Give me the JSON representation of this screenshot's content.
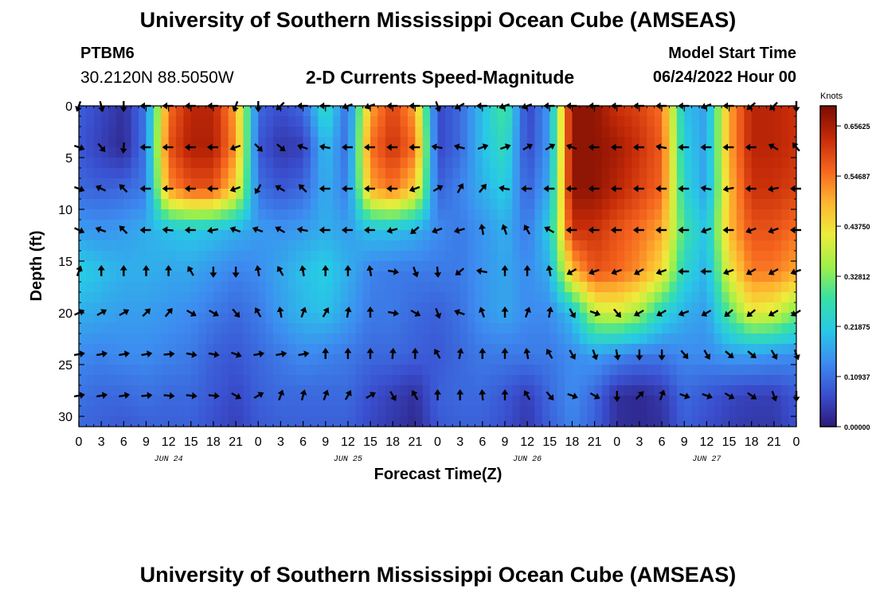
{
  "header": {
    "title": "University of Southern Mississippi Ocean Cube (AMSEAS)",
    "station_id": "PTBM6",
    "coordinates": "30.2120N  88.5050W",
    "subtitle": "2-D Currents Speed-Magnitude",
    "model_start_label": "Model Start Time",
    "model_start_value": "06/24/2022 Hour 00"
  },
  "footer": {
    "title": "University of Southern Mississippi Ocean Cube (AMSEAS)"
  },
  "colors": {
    "scale": [
      "#2b1a78",
      "#3a4fcf",
      "#3d8cf0",
      "#28c9e6",
      "#38e0a4",
      "#a0f048",
      "#ecec3c",
      "#ffb430",
      "#f5641e",
      "#c42a08",
      "#7a0c02"
    ]
  },
  "chart_data": {
    "type": "heatmap",
    "title": "2-D Currents Speed-Magnitude",
    "xlabel": "Forecast Time(Z)",
    "ylabel": "Depth (ft)",
    "x_ticks": [
      "0",
      "3",
      "6",
      "9",
      "12",
      "15",
      "18",
      "21",
      "0",
      "3",
      "6",
      "9",
      "12",
      "15",
      "18",
      "21",
      "0",
      "3",
      "6",
      "9",
      "12",
      "15",
      "18",
      "21",
      "0",
      "3",
      "6",
      "9",
      "12",
      "15",
      "18",
      "21",
      "0"
    ],
    "x_ticks_range_hours": [
      0,
      96
    ],
    "date_labels": [
      {
        "label": "JUN 24",
        "hour": 12
      },
      {
        "label": "JUN 25",
        "hour": 36
      },
      {
        "label": "JUN 26",
        "hour": 60
      },
      {
        "label": "JUN 27",
        "hour": 84
      }
    ],
    "y_ticks": [
      "0",
      "5",
      "10",
      "15",
      "20",
      "25",
      "30"
    ],
    "ylim": [
      0,
      31
    ],
    "colorbar": {
      "unit": "Knots",
      "min": 0,
      "max": 0.7,
      "tick_labels": [
        "0.00000",
        "0.10937",
        "0.21875",
        "0.32812",
        "0.43750",
        "0.54687",
        "0.65625"
      ]
    },
    "speed_field": {
      "units": "knots",
      "depths_ft": [
        0,
        4,
        8,
        12,
        16,
        20,
        24,
        28,
        31
      ],
      "hours": [
        0,
        3,
        6,
        9,
        12,
        15,
        18,
        21,
        24,
        27,
        30,
        33,
        36,
        39,
        42,
        45,
        48,
        51,
        54,
        57,
        60,
        63,
        66,
        69,
        72,
        75,
        78,
        81,
        84,
        87,
        90,
        93,
        96
      ],
      "rows": [
        [
          0.09,
          0.06,
          0.03,
          0.12,
          0.55,
          0.64,
          0.64,
          0.5,
          0.1,
          0.07,
          0.1,
          0.26,
          0.1,
          0.5,
          0.6,
          0.5,
          0.06,
          0.1,
          0.2,
          0.3,
          0.05,
          0.16,
          0.68,
          0.68,
          0.62,
          0.6,
          0.55,
          0.2,
          0.16,
          0.5,
          0.64,
          0.64,
          0.62
        ],
        [
          0.08,
          0.05,
          0.02,
          0.12,
          0.58,
          0.65,
          0.65,
          0.52,
          0.08,
          0.04,
          0.05,
          0.2,
          0.1,
          0.55,
          0.62,
          0.55,
          0.06,
          0.1,
          0.2,
          0.26,
          0.06,
          0.16,
          0.68,
          0.68,
          0.66,
          0.62,
          0.57,
          0.22,
          0.16,
          0.5,
          0.64,
          0.64,
          0.62
        ],
        [
          0.1,
          0.09,
          0.1,
          0.12,
          0.52,
          0.58,
          0.58,
          0.45,
          0.11,
          0.08,
          0.1,
          0.18,
          0.12,
          0.5,
          0.55,
          0.46,
          0.09,
          0.13,
          0.18,
          0.22,
          0.09,
          0.18,
          0.68,
          0.68,
          0.64,
          0.6,
          0.56,
          0.24,
          0.16,
          0.48,
          0.62,
          0.62,
          0.6
        ],
        [
          0.16,
          0.15,
          0.16,
          0.18,
          0.2,
          0.21,
          0.2,
          0.18,
          0.16,
          0.15,
          0.16,
          0.18,
          0.16,
          0.2,
          0.2,
          0.18,
          0.14,
          0.12,
          0.15,
          0.18,
          0.12,
          0.22,
          0.62,
          0.62,
          0.58,
          0.55,
          0.5,
          0.28,
          0.2,
          0.48,
          0.58,
          0.58,
          0.55
        ],
        [
          0.22,
          0.2,
          0.18,
          0.18,
          0.17,
          0.17,
          0.15,
          0.13,
          0.14,
          0.17,
          0.2,
          0.22,
          0.18,
          0.13,
          0.12,
          0.12,
          0.12,
          0.12,
          0.15,
          0.17,
          0.14,
          0.18,
          0.48,
          0.58,
          0.56,
          0.52,
          0.44,
          0.24,
          0.18,
          0.42,
          0.54,
          0.54,
          0.5
        ],
        [
          0.18,
          0.17,
          0.16,
          0.16,
          0.15,
          0.14,
          0.12,
          0.1,
          0.12,
          0.16,
          0.19,
          0.2,
          0.16,
          0.12,
          0.12,
          0.1,
          0.09,
          0.11,
          0.15,
          0.17,
          0.14,
          0.14,
          0.2,
          0.38,
          0.4,
          0.35,
          0.24,
          0.18,
          0.16,
          0.3,
          0.42,
          0.4,
          0.32
        ],
        [
          0.14,
          0.13,
          0.14,
          0.14,
          0.13,
          0.12,
          0.09,
          0.08,
          0.1,
          0.12,
          0.14,
          0.13,
          0.12,
          0.1,
          0.1,
          0.09,
          0.08,
          0.1,
          0.12,
          0.12,
          0.12,
          0.12,
          0.14,
          0.16,
          0.14,
          0.12,
          0.12,
          0.14,
          0.14,
          0.16,
          0.16,
          0.15,
          0.14
        ],
        [
          0.11,
          0.1,
          0.1,
          0.11,
          0.1,
          0.1,
          0.08,
          0.06,
          0.09,
          0.1,
          0.1,
          0.1,
          0.1,
          0.07,
          0.05,
          0.03,
          0.09,
          0.1,
          0.1,
          0.08,
          0.05,
          0.1,
          0.14,
          0.1,
          0.03,
          0.02,
          0.04,
          0.1,
          0.08,
          0.06,
          0.05,
          0.05,
          0.08
        ],
        [
          0.1,
          0.09,
          0.08,
          0.09,
          0.09,
          0.09,
          0.07,
          0.05,
          0.08,
          0.09,
          0.09,
          0.09,
          0.09,
          0.06,
          0.04,
          0.02,
          0.08,
          0.09,
          0.09,
          0.07,
          0.04,
          0.09,
          0.13,
          0.09,
          0.03,
          0.02,
          0.03,
          0.09,
          0.07,
          0.05,
          0.04,
          0.04,
          0.07
        ]
      ]
    },
    "current_vectors": {
      "units": "direction in degrees (0 = up, clockwise)",
      "depths_ft": [
        0,
        4,
        8,
        12,
        16,
        20,
        24,
        28
      ],
      "hours": [
        0,
        3,
        6,
        9,
        12,
        15,
        18,
        21,
        24,
        27,
        30,
        33,
        36,
        39,
        42,
        45,
        48,
        51,
        54,
        57,
        60,
        63,
        66,
        69,
        72,
        75,
        78,
        81,
        84,
        87,
        90,
        93,
        96
      ],
      "angles": [
        [
          200,
          165,
          180,
          270,
          270,
          270,
          270,
          200,
          180,
          225,
          270,
          270,
          250,
          250,
          270,
          270,
          160,
          240,
          270,
          250,
          250,
          270,
          270,
          270,
          270,
          270,
          270,
          270,
          250,
          270,
          230,
          225,
          180
        ],
        [
          110,
          140,
          185,
          270,
          270,
          270,
          270,
          250,
          135,
          130,
          290,
          280,
          270,
          270,
          270,
          270,
          280,
          285,
          70,
          70,
          60,
          60,
          290,
          270,
          270,
          270,
          280,
          270,
          270,
          270,
          270,
          300,
          320
        ],
        [
          110,
          295,
          315,
          270,
          270,
          270,
          270,
          250,
          210,
          300,
          315,
          270,
          270,
          270,
          270,
          250,
          60,
          30,
          40,
          280,
          270,
          270,
          270,
          270,
          270,
          270,
          270,
          270,
          280,
          260,
          270,
          260,
          270
        ],
        [
          115,
          290,
          315,
          270,
          275,
          270,
          260,
          290,
          290,
          300,
          280,
          270,
          270,
          270,
          255,
          230,
          250,
          255,
          350,
          340,
          330,
          300,
          270,
          270,
          270,
          270,
          270,
          270,
          250,
          270,
          250,
          250,
          270
        ],
        [
          20,
          0,
          0,
          0,
          0,
          330,
          180,
          180,
          350,
          330,
          350,
          0,
          0,
          350,
          100,
          160,
          175,
          230,
          280,
          0,
          0,
          350,
          240,
          250,
          250,
          240,
          250,
          270,
          270,
          250,
          240,
          240,
          250
        ],
        [
          65,
          60,
          60,
          45,
          40,
          120,
          120,
          140,
          330,
          350,
          20,
          30,
          10,
          0,
          100,
          120,
          160,
          290,
          340,
          0,
          20,
          10,
          150,
          110,
          140,
          240,
          240,
          250,
          240,
          230,
          230,
          240,
          240
        ],
        [
          80,
          80,
          80,
          80,
          85,
          100,
          100,
          110,
          80,
          80,
          80,
          0,
          0,
          0,
          5,
          0,
          330,
          10,
          0,
          0,
          350,
          330,
          150,
          160,
          170,
          180,
          180,
          140,
          150,
          130,
          130,
          150,
          160
        ],
        [
          80,
          80,
          80,
          85,
          95,
          95,
          95,
          120,
          60,
          20,
          15,
          20,
          30,
          60,
          150,
          330,
          0,
          0,
          355,
          0,
          330,
          140,
          110,
          120,
          180,
          45,
          20,
          110,
          110,
          120,
          125,
          160,
          180
        ]
      ]
    }
  }
}
